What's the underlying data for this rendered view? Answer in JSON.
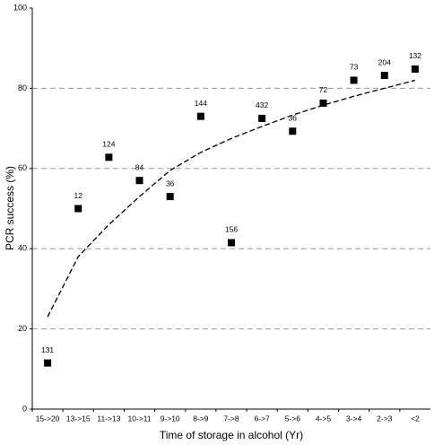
{
  "chart_data": {
    "type": "scatter",
    "y_label": "PCR success (%)",
    "x_label": "Time of storage in alcohol (Yr)",
    "categories": [
      "15->20",
      "13->15",
      "11->13",
      "10->11",
      "9->10",
      "8->9",
      "7->8",
      "6->7",
      "5->6",
      "4->5",
      "3->4",
      "2->3",
      "<2"
    ],
    "values": [
      11.5,
      50,
      62.8,
      57,
      53,
      73,
      41.5,
      72.5,
      69.3,
      76.3,
      82,
      83.2,
      84.8
    ],
    "point_labels": [
      131,
      12,
      124,
      84,
      36,
      144,
      156,
      432,
      36,
      72,
      73,
      204,
      132
    ],
    "trend_values": [
      23,
      38,
      46,
      53,
      59.5,
      64,
      67.5,
      70.5,
      73.3,
      75.8,
      78,
      80,
      82
    ],
    "color": "#000000",
    "ylim": [
      0,
      100
    ],
    "yticks": [
      0,
      20,
      40,
      60,
      80,
      100
    ],
    "grid": true
  }
}
